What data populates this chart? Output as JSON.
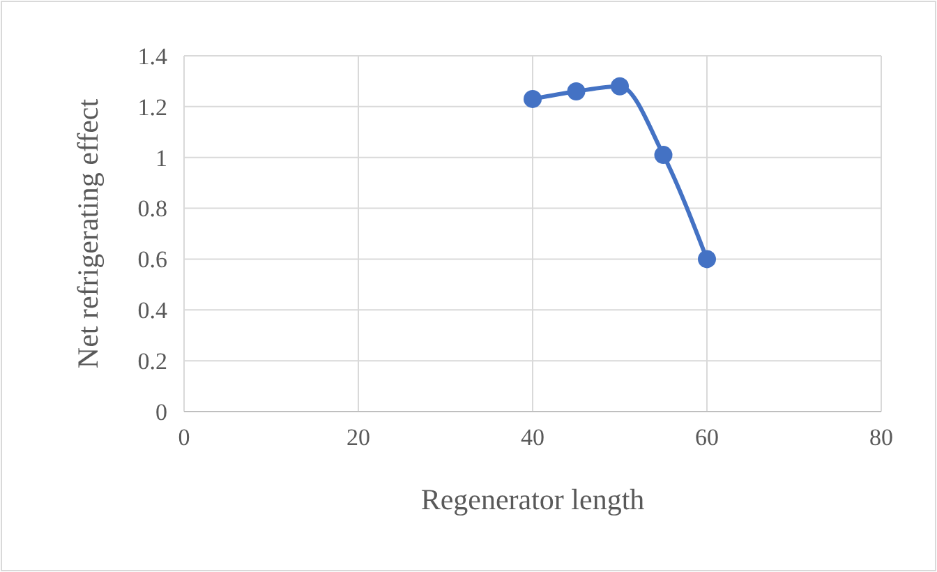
{
  "chart_data": {
    "type": "line",
    "xlabel": "Regenerator length",
    "ylabel": "Net refrigerating effect",
    "x": [
      40,
      45,
      50,
      55,
      60
    ],
    "series": [
      {
        "color": "#4472c4",
        "values": [
          1.23,
          1.26,
          1.28,
          1.01,
          0.6
        ]
      }
    ],
    "xlim": [
      0,
      80
    ],
    "xticks": [
      0,
      20,
      40,
      60,
      80
    ],
    "ylim": [
      0,
      1.4
    ],
    "yticks": [
      0,
      {
        "value": 0.2,
        "label": "0.2"
      },
      {
        "value": 0.4,
        "label": "0.4"
      },
      {
        "value": 0.6,
        "label": "0.6"
      },
      {
        "value": 0.8,
        "label": "0.8"
      },
      1,
      {
        "value": 1.2,
        "label": "1.2"
      },
      {
        "value": 1.4,
        "label": "1.4"
      }
    ],
    "grid": true,
    "marker": "circle",
    "line_style": "solid"
  }
}
